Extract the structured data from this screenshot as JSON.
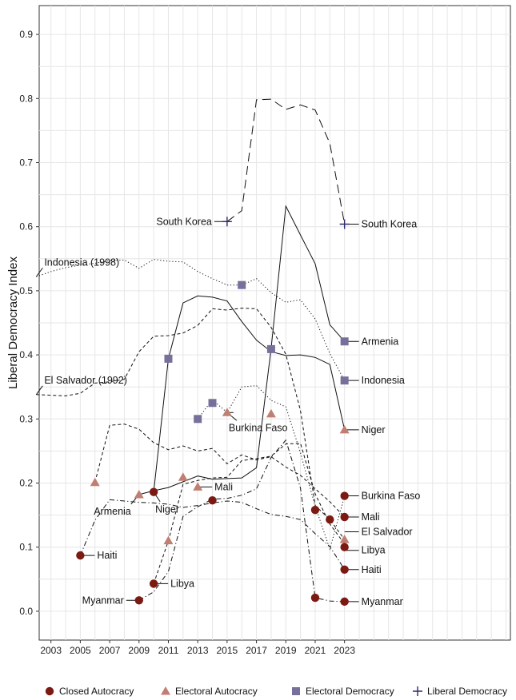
{
  "chart_data": {
    "type": "line",
    "ylabel": "Liberal Democracy Index",
    "xlabel": "",
    "xlim": [
      2002.2,
      2034.3
    ],
    "ylim": [
      -0.045,
      0.945
    ],
    "x_ticks": [
      "2003",
      "2005",
      "2007",
      "2009",
      "2011",
      "2013",
      "2015",
      "2017",
      "2019",
      "2021",
      "2023"
    ],
    "y_ticks": [
      "0.0",
      "0.1",
      "0.2",
      "0.3",
      "0.4",
      "0.5",
      "0.6",
      "0.7",
      "0.8",
      "0.9"
    ],
    "regime_colors": {
      "Closed Autocracy": "#7a1a12",
      "Electoral Autocracy": "#c07f72",
      "Electoral Democracy": "#76709a",
      "Liberal Democracy": "#2d2a6e"
    },
    "legend": [
      {
        "label": "Closed Autocracy",
        "marker": "circle"
      },
      {
        "label": "Electoral Autocracy",
        "marker": "triangle"
      },
      {
        "label": "Electoral Democracy",
        "marker": "square"
      },
      {
        "label": "Liberal Democracy",
        "marker": "plus"
      }
    ],
    "legend_position": "bottom",
    "series": [
      {
        "name": "South Korea",
        "dash": "longdash",
        "x": [
          2015,
          2016,
          2017,
          2018,
          2019,
          2020,
          2021,
          2022,
          2023
        ],
        "y": [
          0.608,
          0.625,
          0.798,
          0.799,
          0.783,
          0.79,
          0.782,
          0.73,
          0.604
        ],
        "markers": [
          {
            "x": 2015,
            "y": 0.608,
            "regime": "Liberal Democracy"
          },
          {
            "x": 2023,
            "y": 0.604,
            "regime": "Liberal Democracy"
          }
        ]
      },
      {
        "name": "Armenia",
        "dash": "solid",
        "x": [
          2009,
          2010,
          2011,
          2012,
          2013,
          2014,
          2015,
          2016,
          2017,
          2018,
          2019,
          2020,
          2021,
          2022,
          2023
        ],
        "y": [
          0.182,
          0.188,
          0.193,
          0.202,
          0.211,
          0.206,
          0.207,
          0.208,
          0.224,
          0.41,
          0.632,
          0.587,
          0.542,
          0.447,
          0.421
        ],
        "markers": [
          {
            "x": 2009,
            "y": 0.182,
            "regime": "Electoral Autocracy"
          },
          {
            "x": 2018,
            "y": 0.409,
            "regime": "Electoral Democracy"
          },
          {
            "x": 2023,
            "y": 0.421,
            "regime": "Electoral Democracy"
          }
        ]
      },
      {
        "name": "Indonesia",
        "dash": "dotted",
        "x": [
          2002,
          2003,
          2004,
          2005,
          2006,
          2007,
          2008,
          2009,
          2010,
          2011,
          2012,
          2013,
          2014,
          2015,
          2016,
          2017,
          2018,
          2019,
          2020,
          2021,
          2022,
          2023
        ],
        "y": [
          0.522,
          0.53,
          0.536,
          0.54,
          0.543,
          0.547,
          0.548,
          0.535,
          0.549,
          0.546,
          0.545,
          0.53,
          0.519,
          0.509,
          0.509,
          0.519,
          0.497,
          0.482,
          0.486,
          0.456,
          0.402,
          0.36
        ],
        "markers": [
          {
            "x": 2016,
            "y": 0.509,
            "regime": "Electoral Democracy"
          },
          {
            "x": 2023,
            "y": 0.36,
            "regime": "Electoral Democracy"
          }
        ]
      },
      {
        "name": "Niger",
        "dash": "solid",
        "x": [
          2010,
          2011,
          2012,
          2013,
          2014,
          2015,
          2016,
          2017,
          2018,
          2019,
          2020,
          2021,
          2022,
          2023
        ],
        "y": [
          0.186,
          0.394,
          0.481,
          0.492,
          0.49,
          0.484,
          0.452,
          0.423,
          0.405,
          0.399,
          0.4,
          0.396,
          0.385,
          0.283
        ],
        "markers": [
          {
            "x": 2010,
            "y": 0.186,
            "regime": "Closed Autocracy"
          },
          {
            "x": 2011,
            "y": 0.394,
            "regime": "Electoral Democracy"
          },
          {
            "x": 2023,
            "y": 0.283,
            "regime": "Electoral Autocracy"
          }
        ]
      },
      {
        "name": "El Salvador",
        "dash": "dashed",
        "x": [
          2002,
          2003,
          2004,
          2005,
          2006,
          2007,
          2008,
          2009,
          2010,
          2011,
          2012,
          2013,
          2014,
          2015,
          2016,
          2017,
          2018,
          2019,
          2020,
          2021,
          2022,
          2023
        ],
        "y": [
          0.338,
          0.337,
          0.336,
          0.34,
          0.356,
          0.358,
          0.362,
          0.405,
          0.429,
          0.43,
          0.434,
          0.446,
          0.472,
          0.47,
          0.473,
          0.472,
          0.443,
          0.401,
          0.313,
          0.165,
          0.143,
          0.112
        ],
        "markers": [
          {
            "x": 2023,
            "y": 0.112,
            "regime": "Electoral Autocracy"
          }
        ]
      },
      {
        "name": "Mali",
        "dash": "dashed",
        "x": [
          2006,
          2007,
          2008,
          2009,
          2010,
          2011,
          2012,
          2013,
          2014,
          2015,
          2016,
          2017,
          2018,
          2019,
          2020,
          2021,
          2022,
          2023
        ],
        "y": [
          0.201,
          0.29,
          0.292,
          0.284,
          0.263,
          0.252,
          0.258,
          0.25,
          0.254,
          0.23,
          0.244,
          0.236,
          0.241,
          0.225,
          0.212,
          0.191,
          0.171,
          0.147
        ],
        "markers": [
          {
            "x": 2006,
            "y": 0.201,
            "regime": "Electoral Autocracy"
          },
          {
            "x": 2013,
            "y": 0.194,
            "regime": "Electoral Autocracy"
          },
          {
            "x": 2014,
            "y": 0.173,
            "regime": "Closed Autocracy"
          },
          {
            "x": 2018,
            "y": 0.308,
            "regime": "Electoral Autocracy"
          },
          {
            "x": 2021,
            "y": 0.158,
            "regime": "Closed Autocracy"
          },
          {
            "x": 2022,
            "y": 0.143,
            "regime": "Closed Autocracy"
          },
          {
            "x": 2023,
            "y": 0.147,
            "regime": "Closed Autocracy"
          }
        ]
      },
      {
        "name": "Burkina Faso",
        "dash": "dotted",
        "x": [
          2013,
          2014,
          2015,
          2016,
          2017,
          2018,
          2019,
          2020,
          2021,
          2022,
          2023
        ],
        "y": [
          0.3,
          0.33,
          0.31,
          0.35,
          0.352,
          0.329,
          0.319,
          0.247,
          0.164,
          0.097,
          0.18
        ],
        "markers": [
          {
            "x": 2015,
            "y": 0.31,
            "regime": "Electoral Autocracy"
          },
          {
            "x": 2023,
            "y": 0.18,
            "regime": "Closed Autocracy"
          }
        ]
      },
      {
        "name": "Haiti",
        "dash": "dashdot",
        "x": [
          2005,
          2006,
          2007,
          2008,
          2009,
          2010,
          2011,
          2012,
          2013,
          2014,
          2015,
          2016,
          2017,
          2018,
          2019,
          2020,
          2021,
          2022,
          2023
        ],
        "y": [
          0.087,
          0.142,
          0.174,
          0.172,
          0.17,
          0.169,
          0.167,
          0.162,
          0.165,
          0.169,
          0.172,
          0.17,
          0.16,
          0.151,
          0.148,
          0.143,
          0.121,
          0.101,
          0.065
        ],
        "markers": [
          {
            "x": 2005,
            "y": 0.087,
            "regime": "Closed Autocracy"
          },
          {
            "x": 2023,
            "y": 0.065,
            "regime": "Closed Autocracy"
          }
        ]
      },
      {
        "name": "Libya",
        "dash": "dashed",
        "x": [
          2010,
          2011,
          2012,
          2013,
          2014,
          2015,
          2016,
          2017,
          2018,
          2019,
          2020,
          2021,
          2022,
          2023
        ],
        "y": [
          0.043,
          0.11,
          0.198,
          0.204,
          0.208,
          0.209,
          0.235,
          0.238,
          0.242,
          0.261,
          0.262,
          0.183,
          0.136,
          0.105
        ],
        "markers": [
          {
            "x": 2010,
            "y": 0.043,
            "regime": "Closed Autocracy"
          },
          {
            "x": 2011,
            "y": 0.11,
            "regime": "Electoral Autocracy"
          },
          {
            "x": 2012,
            "y": 0.209,
            "regime": "Electoral Autocracy"
          },
          {
            "x": 2014,
            "y": 0.325,
            "regime": "Electoral Democracy"
          },
          {
            "x": 2023,
            "y": 0.1,
            "regime": "Closed Autocracy"
          }
        ]
      },
      {
        "name": "Myanmar",
        "dash": "dashdot",
        "x": [
          2009,
          2010,
          2011,
          2012,
          2013,
          2014,
          2015,
          2016,
          2017,
          2018,
          2019,
          2020,
          2021,
          2022,
          2023
        ],
        "y": [
          0.017,
          0.03,
          0.062,
          0.148,
          0.163,
          0.175,
          0.176,
          0.181,
          0.191,
          0.24,
          0.267,
          0.192,
          0.021,
          0.016,
          0.015
        ],
        "markers": [
          {
            "x": 2009,
            "y": 0.017,
            "regime": "Closed Autocracy"
          },
          {
            "x": 2013,
            "y": 0.3,
            "regime": "Electoral Democracy"
          },
          {
            "x": 2021,
            "y": 0.021,
            "regime": "Closed Autocracy"
          },
          {
            "x": 2023,
            "y": 0.015,
            "regime": "Closed Autocracy"
          }
        ]
      }
    ],
    "annotations": [
      {
        "text": "South Korea",
        "x": 2015,
        "y": 0.608,
        "side": "left"
      },
      {
        "text": "South Korea",
        "x": 2023,
        "y": 0.604,
        "side": "right"
      },
      {
        "text": "Indonesia (1998)",
        "x": 2002,
        "y": 0.522,
        "side": "top"
      },
      {
        "text": "El Salvador (1992)",
        "x": 2002,
        "y": 0.338,
        "side": "top"
      },
      {
        "text": "Armenia",
        "x": 2023,
        "y": 0.421,
        "side": "right"
      },
      {
        "text": "Indonesia",
        "x": 2023,
        "y": 0.36,
        "side": "right"
      },
      {
        "text": "Niger",
        "x": 2023,
        "y": 0.283,
        "side": "right"
      },
      {
        "text": "Burkina Faso",
        "x": 2023,
        "y": 0.18,
        "side": "right"
      },
      {
        "text": "Mali",
        "x": 2023,
        "y": 0.147,
        "side": "right"
      },
      {
        "text": "El Salvador",
        "x": 2023,
        "y": 0.124,
        "side": "right"
      },
      {
        "text": "Libya",
        "x": 2023,
        "y": 0.095,
        "side": "right"
      },
      {
        "text": "Haiti",
        "x": 2023,
        "y": 0.065,
        "side": "right"
      },
      {
        "text": "Myanmar",
        "x": 2023,
        "y": 0.015,
        "side": "right"
      },
      {
        "text": "Burkina Faso",
        "x": 2015,
        "y": 0.31,
        "side": "below"
      },
      {
        "text": "Armenia",
        "x": 2009,
        "y": 0.182,
        "side": "below-left"
      },
      {
        "text": "Niger",
        "x": 2010,
        "y": 0.186,
        "side": "below-right"
      },
      {
        "text": "Mali",
        "x": 2013,
        "y": 0.194,
        "side": "right"
      },
      {
        "text": "Haiti",
        "x": 2005,
        "y": 0.087,
        "side": "right"
      },
      {
        "text": "Libya",
        "x": 2010,
        "y": 0.043,
        "side": "right"
      },
      {
        "text": "Myanmar",
        "x": 2009,
        "y": 0.017,
        "side": "left"
      }
    ],
    "grid": true
  }
}
